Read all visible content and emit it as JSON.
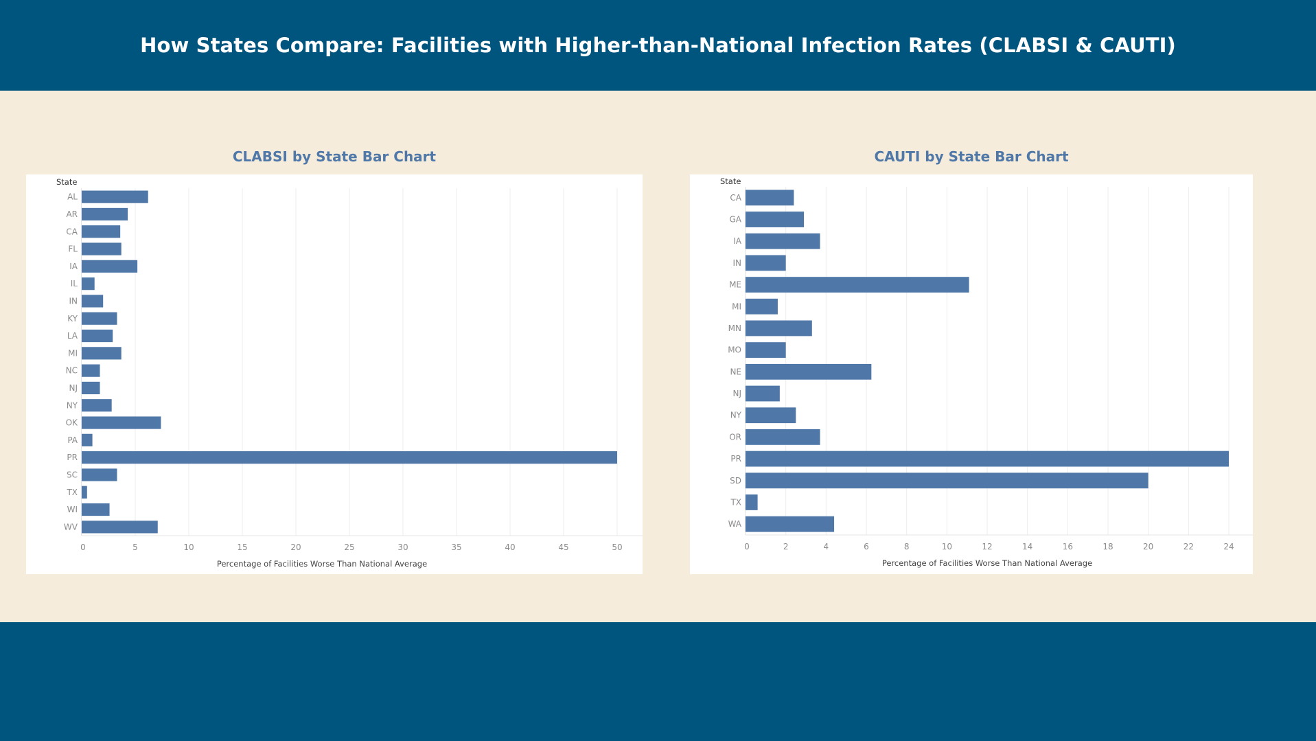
{
  "page": {
    "title": "How States Compare: Facilities with Higher-than-National Infection Rates (CLABSI & CAUTI)"
  },
  "colors": {
    "header_bg": "#00557f",
    "page_bg": "#f5ecdc",
    "bar": "#4f78a8",
    "chart_title": "#4f78a8"
  },
  "chart_data": [
    {
      "type": "bar",
      "orientation": "horizontal",
      "title": "CLABSI by State Bar Chart",
      "rows_header": "State",
      "xlabel": "Percentage of Facilities Worse Than National Average",
      "xlim": [
        0,
        52
      ],
      "xticks": [
        0,
        5,
        10,
        15,
        20,
        25,
        30,
        35,
        40,
        45,
        50
      ],
      "grid": true,
      "categories": [
        "AL",
        "AR",
        "CA",
        "FL",
        "IA",
        "IL",
        "IN",
        "KY",
        "LA",
        "MI",
        "NC",
        "NJ",
        "NY",
        "OK",
        "PA",
        "PR",
        "SC",
        "TX",
        "WI",
        "WV"
      ],
      "values": [
        6.2,
        4.3,
        3.6,
        3.7,
        5.2,
        1.2,
        2.0,
        3.3,
        2.9,
        3.7,
        1.7,
        1.7,
        2.8,
        7.4,
        1.0,
        50.0,
        3.3,
        0.5,
        2.6,
        7.1
      ]
    },
    {
      "type": "bar",
      "orientation": "horizontal",
      "title": "CAUTI by State Bar Chart",
      "rows_header": "State",
      "xlabel": "Percentage of Facilities Worse Than National Average",
      "xlim": [
        0,
        25
      ],
      "xticks": [
        0,
        2,
        4,
        6,
        8,
        10,
        12,
        14,
        16,
        18,
        20,
        22,
        24
      ],
      "grid": true,
      "categories": [
        "CA",
        "GA",
        "IA",
        "IN",
        "ME",
        "MI",
        "MN",
        "MO",
        "NE",
        "NJ",
        "NY",
        "OR",
        "PR",
        "SD",
        "TX",
        "WA"
      ],
      "values": [
        2.4,
        2.9,
        3.7,
        2.0,
        11.1,
        1.6,
        3.3,
        2.0,
        6.25,
        1.7,
        2.5,
        3.7,
        24.0,
        20.0,
        0.6,
        4.4
      ]
    }
  ]
}
